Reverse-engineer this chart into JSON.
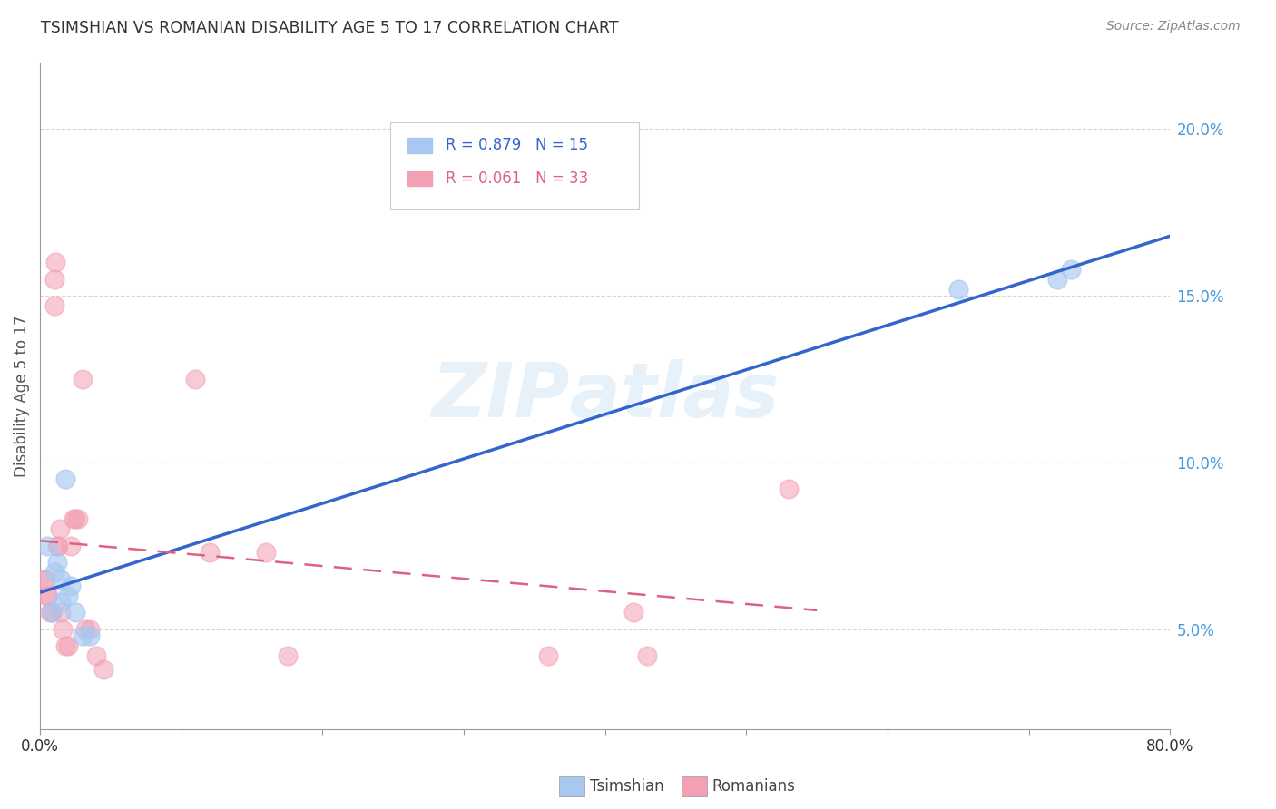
{
  "title": "TSIMSHIAN VS ROMANIAN DISABILITY AGE 5 TO 17 CORRELATION CHART",
  "source": "Source: ZipAtlas.com",
  "ylabel": "Disability Age 5 to 17",
  "xlim": [
    0.0,
    0.8
  ],
  "ylim": [
    0.02,
    0.22
  ],
  "yticks": [
    0.05,
    0.1,
    0.15,
    0.2
  ],
  "tsimshian_R": 0.879,
  "tsimshian_N": 15,
  "romanian_R": 0.061,
  "romanian_N": 33,
  "tsimshian_color": "#A8C8F0",
  "romanian_color": "#F4A0B4",
  "tsimshian_line_color": "#3366CC",
  "romanian_line_color": "#E06080",
  "background": "#FFFFFF",
  "grid_color": "#CCCCCC",
  "axis_color": "#999999",
  "title_color": "#333333",
  "right_tick_color": "#4499DD",
  "tsimshian_x": [
    0.005,
    0.008,
    0.01,
    0.012,
    0.015,
    0.015,
    0.018,
    0.02,
    0.022,
    0.025,
    0.03,
    0.035,
    0.65,
    0.72,
    0.73
  ],
  "tsimshian_y": [
    0.075,
    0.055,
    0.067,
    0.07,
    0.058,
    0.065,
    0.095,
    0.06,
    0.063,
    0.055,
    0.048,
    0.048,
    0.152,
    0.155,
    0.158
  ],
  "romanian_x": [
    0.003,
    0.004,
    0.005,
    0.006,
    0.007,
    0.008,
    0.01,
    0.01,
    0.011,
    0.012,
    0.013,
    0.014,
    0.015,
    0.016,
    0.018,
    0.02,
    0.022,
    0.024,
    0.025,
    0.027,
    0.03,
    0.032,
    0.035,
    0.04,
    0.045,
    0.11,
    0.12,
    0.16,
    0.175,
    0.36,
    0.42,
    0.43,
    0.53
  ],
  "romanian_y": [
    0.065,
    0.065,
    0.06,
    0.06,
    0.055,
    0.055,
    0.147,
    0.155,
    0.16,
    0.075,
    0.075,
    0.08,
    0.055,
    0.05,
    0.045,
    0.045,
    0.075,
    0.083,
    0.083,
    0.083,
    0.125,
    0.05,
    0.05,
    0.042,
    0.038,
    0.125,
    0.073,
    0.073,
    0.042,
    0.042,
    0.055,
    0.042,
    0.092
  ]
}
